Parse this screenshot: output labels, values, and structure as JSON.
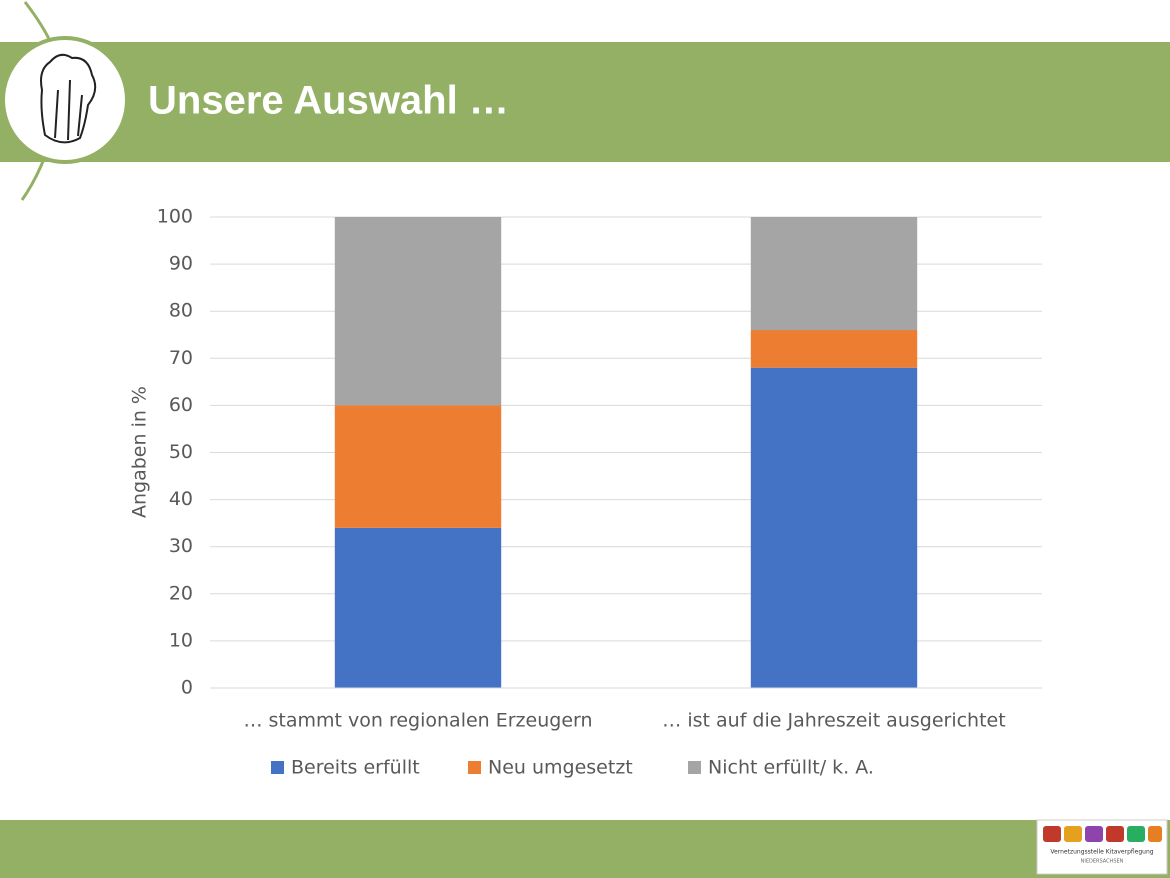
{
  "header": {
    "title": "Unsere Auswahl …"
  },
  "chart_data": {
    "type": "stacked_bar",
    "y_label": "Angaben in %",
    "categories": [
      "… stammt von regionalen Erzeugern",
      "… ist auf die Jahreszeit ausgerichtet"
    ],
    "series": [
      {
        "name": "Bereits erfüllt",
        "color": "#4472c4",
        "values": [
          34,
          68
        ]
      },
      {
        "name": "Neu umgesetzt",
        "color": "#ed7d31",
        "values": [
          26,
          8
        ]
      },
      {
        "name": "Nicht erfüllt/ k. A.",
        "color": "#a5a5a5",
        "values": [
          40,
          24
        ]
      }
    ],
    "ylim": [
      0,
      100
    ],
    "yticks": [
      0,
      10,
      20,
      30,
      40,
      50,
      60,
      70,
      80,
      90,
      100
    ],
    "grid": true,
    "legend": "bottom"
  },
  "logo": {
    "line1": "Vernetzungsstelle Kitaverpflegung",
    "line2": "NIEDERSACHSEN"
  }
}
